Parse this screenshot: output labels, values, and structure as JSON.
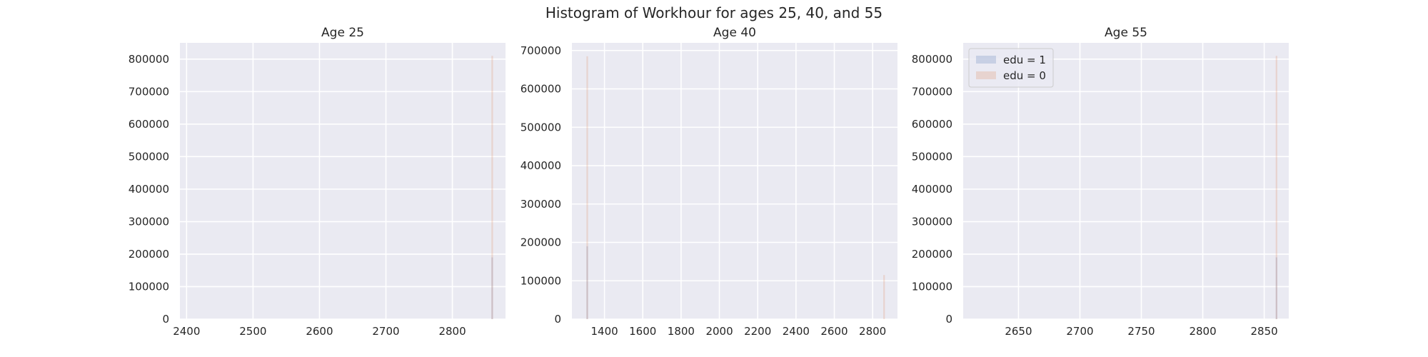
{
  "figure": {
    "suptitle": "Histogram of Workhour for ages 25, 40, and 55",
    "background": "#ffffff",
    "axes_background": "#eaeaf2",
    "grid_color": "#ffffff",
    "text_color": "#262626"
  },
  "chart_data": [
    {
      "type": "bar",
      "title": "Age 25",
      "xlabel": "",
      "ylabel": "",
      "xlim": [
        2390,
        2880
      ],
      "ylim": [
        0,
        850000
      ],
      "xticks": [
        2400,
        2500,
        2600,
        2700,
        2800
      ],
      "yticks": [
        0,
        100000,
        200000,
        300000,
        400000,
        500000,
        600000,
        700000,
        800000
      ],
      "grid": true,
      "series": [
        {
          "name": "edu = 1",
          "color": "#4c72b0",
          "bars": [
            {
              "x": 2860,
              "y": 190000
            }
          ]
        },
        {
          "name": "edu = 0",
          "color": "#dd8452",
          "bars": [
            {
              "x": 2860,
              "y": 810000
            }
          ]
        }
      ]
    },
    {
      "type": "bar",
      "title": "Age 40",
      "xlabel": "",
      "ylabel": "",
      "xlim": [
        1230,
        2930
      ],
      "ylim": [
        0,
        720000
      ],
      "xticks": [
        1400,
        1600,
        1800,
        2000,
        2200,
        2400,
        2600,
        2800
      ],
      "yticks": [
        0,
        100000,
        200000,
        300000,
        400000,
        500000,
        600000,
        700000
      ],
      "grid": true,
      "series": [
        {
          "name": "edu = 1",
          "color": "#4c72b0",
          "bars": [
            {
              "x": 1310,
              "y": 190000
            }
          ]
        },
        {
          "name": "edu = 0",
          "color": "#dd8452",
          "bars": [
            {
              "x": 1310,
              "y": 685000
            },
            {
              "x": 2860,
              "y": 115000
            }
          ]
        }
      ]
    },
    {
      "type": "bar",
      "title": "Age 55",
      "xlabel": "",
      "ylabel": "",
      "xlim": [
        2605,
        2870
      ],
      "ylim": [
        0,
        850000
      ],
      "xticks": [
        2650,
        2700,
        2750,
        2800,
        2850
      ],
      "yticks": [
        0,
        100000,
        200000,
        300000,
        400000,
        500000,
        600000,
        700000,
        800000
      ],
      "grid": true,
      "legend": {
        "placement": "upper left",
        "entries": [
          "edu = 1",
          "edu = 0"
        ]
      },
      "series": [
        {
          "name": "edu = 1",
          "color": "#4c72b0",
          "bars": [
            {
              "x": 2860,
              "y": 190000
            }
          ]
        },
        {
          "name": "edu = 0",
          "color": "#dd8452",
          "bars": [
            {
              "x": 2860,
              "y": 810000
            }
          ]
        }
      ]
    }
  ]
}
